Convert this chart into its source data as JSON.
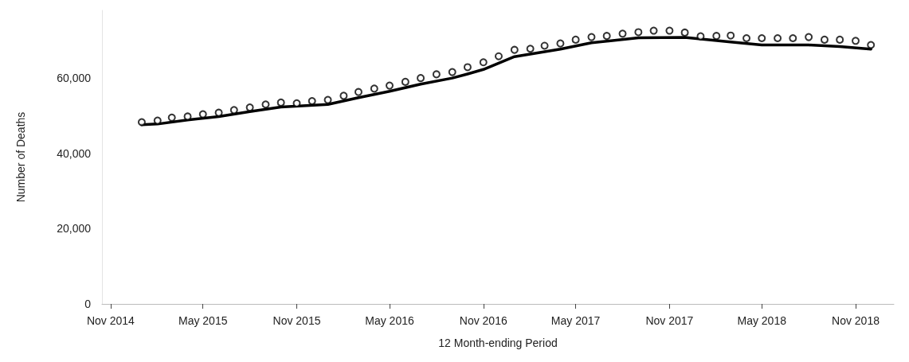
{
  "chart_data": {
    "type": "line",
    "xlabel": "12 Month-ending Period",
    "ylabel": "Number of Deaths",
    "xlim": [
      "2014-10-15",
      "2019-01-15"
    ],
    "xticks": [
      {
        "value": "2014-11",
        "label": "Nov 2014"
      },
      {
        "value": "2015-05",
        "label": "May 2015"
      },
      {
        "value": "2015-11",
        "label": "Nov 2015"
      },
      {
        "value": "2016-05",
        "label": "May 2016"
      },
      {
        "value": "2016-11",
        "label": "Nov 2016"
      },
      {
        "value": "2017-05",
        "label": "May 2017"
      },
      {
        "value": "2017-11",
        "label": "Nov 2017"
      },
      {
        "value": "2018-05",
        "label": "May 2018"
      },
      {
        "value": "2018-11",
        "label": "Nov 2018"
      }
    ],
    "ylim": [
      0,
      78000
    ],
    "yticks": [
      {
        "value": 0,
        "label": "0"
      },
      {
        "value": 20000,
        "label": "20,000"
      },
      {
        "value": 40000,
        "label": "40,000"
      },
      {
        "value": 60000,
        "label": "60,000"
      }
    ],
    "grid": false,
    "marker": "none",
    "line_style": "solid",
    "series": [
      {
        "type": "scatter",
        "marker": "circle",
        "color": "#000000",
        "x": [
          "2015-01",
          "2015-02",
          "2015-03",
          "2015-04",
          "2015-05",
          "2015-06",
          "2015-07",
          "2015-08",
          "2015-09",
          "2015-10",
          "2015-11",
          "2015-12",
          "2016-01",
          "2016-02",
          "2016-03",
          "2016-04",
          "2016-05",
          "2016-06",
          "2016-07",
          "2016-08",
          "2016-09",
          "2016-10",
          "2016-11",
          "2016-12",
          "2017-01",
          "2017-02",
          "2017-03",
          "2017-04",
          "2017-05",
          "2017-06",
          "2017-07",
          "2017-08",
          "2017-09",
          "2017-10",
          "2017-11",
          "2017-12",
          "2018-01",
          "2018-02",
          "2018-03",
          "2018-04",
          "2018-05",
          "2018-06",
          "2018-07",
          "2018-08",
          "2018-09",
          "2018-10",
          "2018-11",
          "2018-12"
        ],
        "values": [
          48300,
          48700,
          49500,
          49800,
          50400,
          50800,
          51500,
          52200,
          53000,
          53500,
          53300,
          53900,
          54200,
          55300,
          56300,
          57200,
          58000,
          59000,
          60000,
          61000,
          61600,
          62900,
          64200,
          65800,
          67500,
          67800,
          68600,
          69200,
          70200,
          70900,
          71200,
          71800,
          72200,
          72600,
          72600,
          72100,
          71100,
          71200,
          71300,
          70600,
          70600,
          70600,
          70600,
          70900,
          70200,
          70200,
          69900,
          68800
        ]
      },
      {
        "color": "#000000",
        "x": [
          "2015-01",
          "2015-02",
          "2015-04",
          "2015-06",
          "2015-08",
          "2015-10",
          "2016-01",
          "2016-03",
          "2016-05",
          "2016-07",
          "2016-09",
          "2016-10",
          "2016-11",
          "2017-01",
          "2017-04",
          "2017-06",
          "2017-09",
          "2017-12",
          "2018-03",
          "2018-05",
          "2018-08",
          "2018-10",
          "2018-12"
        ],
        "values": [
          47600,
          47800,
          48900,
          49800,
          51100,
          52300,
          53000,
          54800,
          56500,
          58400,
          60000,
          61100,
          62300,
          65700,
          67700,
          69400,
          70700,
          70800,
          69600,
          68800,
          68800,
          68400,
          67700
        ]
      }
    ]
  }
}
